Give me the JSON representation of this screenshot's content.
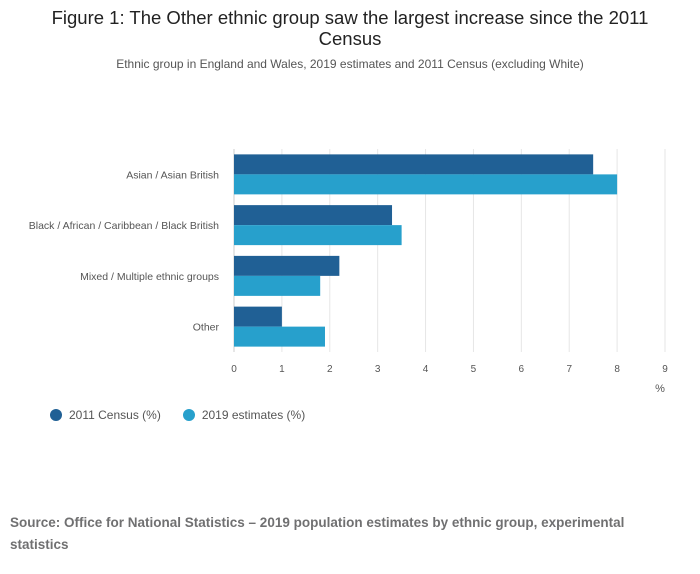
{
  "header": {
    "title": "Figure 1: The Other ethnic group saw the largest increase since the 2011 Census",
    "subtitle": "Ethnic group in England and Wales, 2019 estimates and 2011 Census (excluding White)"
  },
  "footer": {
    "source": "Source: Office for National Statistics – 2019 population estimates by ethnic group, experimental statistics"
  },
  "chart_data": {
    "type": "bar",
    "orientation": "horizontal",
    "categories": [
      "Asian / Asian British",
      "Black / African / Caribbean / Black British",
      "Mixed / Multiple ethnic groups",
      "Other"
    ],
    "series": [
      {
        "name": "2011 Census (%)",
        "color": "#206095",
        "values": [
          7.5,
          3.3,
          2.2,
          1.0
        ]
      },
      {
        "name": "2019 estimates (%)",
        "color": "#27a0cc",
        "values": [
          8.0,
          3.5,
          1.8,
          1.9
        ]
      }
    ],
    "xlim": [
      0,
      9
    ],
    "xticks": [
      "0",
      "1",
      "2",
      "3",
      "4",
      "5",
      "6",
      "7",
      "8",
      "9"
    ],
    "xlabel": "%",
    "grid": true,
    "legend_position": "bottom-left"
  }
}
